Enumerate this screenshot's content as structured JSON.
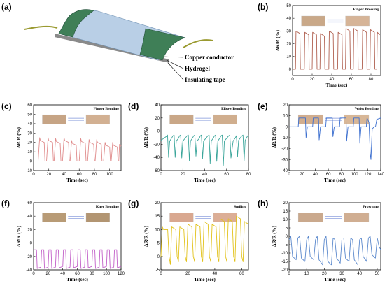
{
  "figure": {
    "panel_a": {
      "label": "(a)",
      "labels": [
        "Copper conductor",
        "Hydrogel",
        "Insulating tape"
      ]
    }
  },
  "colors": {
    "hydrogel": "#b9cfe6",
    "copper_electrode": "#3f7f57",
    "wire": "#9a9a30"
  },
  "chart_data": [
    {
      "id": "b",
      "panel": "(b)",
      "type": "line",
      "title": "Finger Pressing",
      "xlabel": "Time (sec)",
      "ylabel": "ΔR/R (%)",
      "xlim": [
        0,
        90
      ],
      "ylim": [
        -5,
        50
      ],
      "xticks": [
        0,
        20,
        40,
        60,
        80
      ],
      "yticks": [
        0,
        10,
        20,
        30,
        40,
        50
      ],
      "color": "#b06050",
      "photo_colors": [
        "#c9a888",
        "#d6b497"
      ],
      "cycles": [
        [
          3,
          30
        ],
        [
          12,
          29
        ],
        [
          20,
          29
        ],
        [
          28,
          28
        ],
        [
          37,
          30
        ],
        [
          46,
          29
        ],
        [
          54,
          32
        ],
        [
          62,
          32
        ],
        [
          71,
          31
        ],
        [
          79,
          31
        ],
        [
          86,
          29
        ]
      ],
      "pulse_width": 4.5,
      "baseline": 0,
      "x": [
        0,
        2,
        3,
        3.5,
        7.5,
        8,
        12,
        12.5,
        16.5,
        17,
        20,
        20.5,
        24.5,
        25,
        28,
        28.5,
        32.5,
        33,
        37,
        37.5,
        41.5,
        42,
        46,
        46.5,
        50.5,
        51,
        54,
        54.5,
        58.5,
        59,
        62,
        62.5,
        66.5,
        67,
        71,
        71.5,
        75.5,
        76,
        79,
        79.5,
        83.5,
        84,
        86,
        86.5,
        89
      ],
      "y": [
        0,
        0,
        0,
        30,
        28,
        0,
        0,
        29,
        27,
        0,
        0,
        29,
        27,
        0,
        0,
        28,
        26,
        0,
        0,
        30,
        28,
        0,
        0,
        29,
        27,
        0,
        0,
        32,
        30,
        0,
        0,
        32,
        30,
        0,
        0,
        31,
        29,
        0,
        0,
        31,
        29,
        0,
        0,
        29,
        27
      ]
    },
    {
      "id": "c",
      "panel": "(c)",
      "type": "line",
      "title": "Finger Bending",
      "xlabel": "Time (sec)",
      "ylabel": "ΔR/R (%)",
      "xlim": [
        0,
        115
      ],
      "ylim": [
        -10,
        60
      ],
      "xticks": [
        0,
        20,
        40,
        60,
        80,
        100
      ],
      "yticks": [
        -10,
        0,
        10,
        20,
        30,
        40,
        50,
        60
      ],
      "color": "#e08c8c",
      "photo_colors": [
        "#c6a485",
        "#d2b092"
      ],
      "cycles": [
        [
          8,
          25
        ],
        [
          19,
          25
        ],
        [
          29,
          24
        ],
        [
          40,
          25
        ],
        [
          50,
          22
        ],
        [
          62,
          24
        ],
        [
          73,
          23
        ],
        [
          83,
          23
        ],
        [
          94,
          20
        ],
        [
          104,
          20
        ],
        [
          112,
          18
        ]
      ],
      "x": [
        0,
        6,
        8,
        9,
        14,
        15,
        17,
        19,
        20,
        25,
        26,
        27,
        29,
        30,
        35,
        36,
        38,
        40,
        41,
        46,
        47,
        48,
        50,
        51,
        56,
        57,
        60,
        62,
        63,
        68,
        69,
        71,
        73,
        74,
        79,
        80,
        81,
        83,
        84,
        89,
        90,
        92,
        94,
        95,
        100,
        101,
        102,
        104,
        105,
        110,
        111,
        112,
        113,
        115
      ],
      "y": [
        0,
        0,
        25,
        22,
        20,
        0,
        0,
        25,
        22,
        20,
        0,
        0,
        24,
        21,
        19,
        0,
        0,
        25,
        22,
        20,
        0,
        0,
        22,
        19,
        17,
        0,
        0,
        24,
        21,
        19,
        0,
        0,
        23,
        20,
        18,
        0,
        0,
        23,
        20,
        18,
        0,
        0,
        20,
        17,
        15,
        0,
        0,
        20,
        17,
        15,
        0,
        0,
        18,
        16
      ]
    },
    {
      "id": "d",
      "panel": "(d)",
      "type": "line",
      "title": "Elbow Bending",
      "xlabel": "Time (sec)",
      "ylabel": "ΔR/R (%)",
      "xlim": [
        0,
        80
      ],
      "ylim": [
        -60,
        40
      ],
      "xticks": [
        0,
        20,
        40,
        60,
        80
      ],
      "yticks": [
        -60,
        -40,
        -20,
        0,
        20,
        40
      ],
      "color": "#3aa59a",
      "photo_colors": [
        "#c9a787",
        "#d0ae8e"
      ],
      "cycles": [
        [
          7,
          -40
        ],
        [
          13,
          -40
        ],
        [
          19,
          -41
        ],
        [
          26,
          -45
        ],
        [
          32,
          -38
        ],
        [
          38,
          -42
        ],
        [
          45,
          -49
        ],
        [
          51,
          -46
        ],
        [
          57,
          -52
        ],
        [
          63,
          -41
        ],
        [
          70,
          -39
        ],
        [
          76,
          -45
        ]
      ],
      "x": [
        0,
        5,
        6,
        7,
        8,
        10,
        11,
        12,
        13,
        14,
        16,
        17,
        18,
        19,
        20,
        23,
        24,
        25,
        26,
        27,
        29,
        30,
        31,
        32,
        33,
        35,
        36,
        37,
        38,
        39,
        42,
        43,
        44,
        45,
        46,
        48,
        49,
        50,
        51,
        52,
        54,
        55,
        56,
        57,
        58,
        61,
        62,
        63,
        64,
        66,
        68,
        69,
        70,
        71,
        73,
        75,
        76,
        77,
        79,
        80
      ],
      "y": [
        -14,
        -8,
        -6,
        -40,
        -15,
        -10,
        -7,
        -6,
        -40,
        -15,
        -11,
        -7,
        -6,
        -41,
        -15,
        -9,
        -7,
        -6,
        -45,
        -15,
        -10,
        -7,
        -6,
        -38,
        -15,
        -11,
        -7,
        -6,
        -42,
        -15,
        -9,
        -7,
        -6,
        -49,
        -15,
        -10,
        -7,
        -6,
        -46,
        -15,
        -10,
        -7,
        -6,
        -52,
        -15,
        -9,
        -7,
        -6,
        -41,
        -15,
        -10,
        -7,
        -39,
        -14,
        -9,
        -6,
        -45,
        -14,
        -8,
        -6
      ]
    },
    {
      "id": "e",
      "panel": "(e)",
      "type": "line",
      "title": "Wrist Bending",
      "xlabel": "Time (sec)",
      "ylabel": "ΔR/R (%)",
      "xlim": [
        0,
        140
      ],
      "ylim": [
        -40,
        20
      ],
      "xticks": [
        0,
        20,
        40,
        60,
        80,
        100,
        120,
        140
      ],
      "yticks": [
        -40,
        -30,
        -20,
        -10,
        0,
        10,
        20
      ],
      "color": "#3c6fcf",
      "photo_colors": [
        "#d1ad8e",
        "#d8b797"
      ],
      "x": [
        0,
        5,
        8,
        14,
        15,
        25,
        26,
        28,
        36,
        37,
        45,
        46,
        48,
        56,
        57,
        66,
        67,
        69,
        77,
        78,
        87,
        88,
        90,
        98,
        99,
        107,
        108,
        110,
        118,
        119,
        122,
        124,
        125,
        127,
        130,
        132,
        134,
        135,
        140
      ],
      "y": [
        0,
        0,
        0,
        0,
        8,
        8,
        -10,
        0,
        0,
        8,
        8,
        -12,
        0,
        0,
        8,
        8,
        -9,
        0,
        0,
        8,
        8,
        -13,
        0,
        0,
        8,
        8,
        -15,
        0,
        0,
        8,
        4,
        -25,
        -30,
        -2,
        0,
        0,
        7,
        7,
        8
      ]
    },
    {
      "id": "f",
      "panel": "(f)",
      "type": "line",
      "title": "Knee Bending",
      "xlabel": "Time (sec)",
      "ylabel": "ΔR/R (%)",
      "xlim": [
        0,
        120
      ],
      "ylim": [
        -40,
        60
      ],
      "xticks": [
        0,
        20,
        40,
        60,
        80,
        100,
        120
      ],
      "yticks": [
        -40,
        -20,
        0,
        20,
        40,
        60
      ],
      "color": "#c25fc8",
      "photo_colors": [
        "#b89b76",
        "#b29572"
      ],
      "x": [
        0,
        4,
        5,
        10,
        11,
        14,
        15,
        20,
        21,
        24,
        25,
        30,
        31,
        34,
        35,
        40,
        41,
        44,
        45,
        50,
        51,
        54,
        55,
        60,
        61,
        64,
        65,
        70,
        71,
        74,
        75,
        80,
        81,
        84,
        85,
        90,
        91,
        94,
        95,
        100,
        101,
        104,
        105,
        110,
        111,
        114,
        115,
        120
      ],
      "y": [
        -10,
        -10,
        -38,
        -36,
        -10,
        -10,
        -38,
        -36,
        -10,
        -10,
        -38,
        -36,
        -10,
        -10,
        -37,
        -35,
        -10,
        -10,
        -38,
        -36,
        -10,
        -10,
        -37,
        -35,
        -10,
        -10,
        -38,
        -36,
        -10,
        -10,
        -37,
        -35,
        -10,
        -10,
        -38,
        -36,
        -10,
        -10,
        -37,
        -35,
        -10,
        -10,
        -38,
        -36,
        -10,
        -10,
        -37,
        -35
      ]
    },
    {
      "id": "g",
      "panel": "(g)",
      "type": "line",
      "title": "Smiling",
      "xlabel": "Time (sec)",
      "ylabel": "ΔR/R (%)",
      "xlim": [
        0,
        65
      ],
      "ylim": [
        -5,
        20
      ],
      "xticks": [
        0,
        20,
        40,
        60
      ],
      "yticks": [
        -5,
        0,
        5,
        10,
        15,
        20
      ],
      "color": "#e2c21a",
      "photo_colors": [
        "#d9a890",
        "#dcae96"
      ],
      "x": [
        0,
        1,
        2,
        5,
        6,
        7,
        8,
        11,
        12,
        13,
        14,
        17,
        18,
        19,
        20,
        23,
        24,
        25,
        26,
        29,
        30,
        31,
        32,
        35,
        36,
        37,
        38,
        41,
        42,
        43,
        44,
        47,
        48,
        49,
        50,
        53,
        54,
        55,
        56,
        59,
        60,
        61,
        62,
        65
      ],
      "y": [
        0,
        11,
        10,
        10,
        0,
        -3,
        11,
        10,
        0,
        -2,
        11,
        10,
        0,
        -2,
        12,
        11,
        0,
        -2,
        12,
        11,
        0,
        -2,
        13,
        12,
        0,
        -2,
        12,
        11,
        0,
        -2,
        14,
        13,
        0,
        -2,
        14,
        13,
        0,
        -2,
        15,
        14,
        0,
        -2,
        13,
        12
      ]
    },
    {
      "id": "h",
      "panel": "(h)",
      "type": "line",
      "title": "Frowning",
      "xlabel": "Time (sec)",
      "ylabel": "ΔR/R (%)",
      "xlim": [
        0,
        52
      ],
      "ylim": [
        -20,
        20
      ],
      "xticks": [
        0,
        10,
        20,
        30,
        40,
        50
      ],
      "yticks": [
        -20,
        -15,
        -10,
        -5,
        0,
        5,
        10,
        15,
        20
      ],
      "color": "#5a88cc",
      "photo_colors": [
        "#caa98d",
        "#d0ae92"
      ],
      "x": [
        0,
        1,
        2,
        4,
        5,
        6,
        7,
        9,
        10,
        11,
        12,
        14,
        15,
        16,
        17,
        19,
        20,
        21,
        22,
        24,
        25,
        26,
        27,
        29,
        30,
        31,
        32,
        34,
        35,
        36,
        37,
        39,
        40,
        41,
        42,
        44,
        45,
        46,
        47,
        49,
        50,
        51,
        52
      ],
      "y": [
        -2,
        0,
        -12,
        -14,
        -1,
        0,
        -13,
        -15,
        -2,
        0,
        -12,
        -14,
        -2,
        0,
        -14,
        -17,
        -2,
        0,
        -15,
        -17,
        -1,
        -2,
        -13,
        -16,
        -1,
        -1,
        -13,
        -15,
        -1,
        -2,
        -14,
        -17,
        -2,
        -1,
        -12,
        -15,
        -1,
        0,
        -11,
        -13,
        -1,
        -6,
        -8
      ]
    }
  ]
}
